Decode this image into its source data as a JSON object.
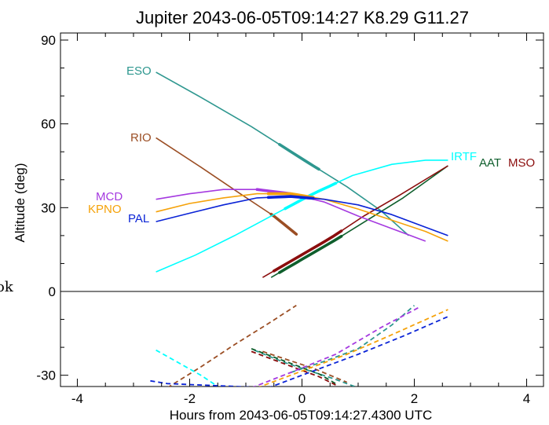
{
  "chart_data": {
    "type": "line",
    "title": "Jupiter 2043-06-05T09:14:27  K8.29  G11.27",
    "xlabel": "Hours from 2043-06-05T09:14:27.4300 UTC",
    "ylabel": "Altitude (deg)",
    "xlim": [
      -4.3,
      4.3
    ],
    "ylim": [
      -35,
      95
    ],
    "x_ticks": [
      "-4",
      "-2",
      "0",
      "2",
      "4"
    ],
    "y_ticks": [
      "90",
      "60",
      "30",
      "0",
      "-30"
    ],
    "stray_text": "ok",
    "series": [
      {
        "name": "ESO",
        "color": "#2e978f",
        "x": [
          -2.6,
          -1.8,
          -0.9,
          0.0,
          0.8,
          1.4,
          1.9
        ],
        "y": [
          78.5,
          69.5,
          59.0,
          47.5,
          37.5,
          29.0,
          20.0
        ],
        "thick_x": [
          -0.4,
          0.3
        ],
        "shadow_x": [
          -0.85,
          -0.55,
          -0.3,
          0.0,
          0.3,
          0.6,
          1.0
        ],
        "shadow_y": [
          -21.0,
          -23.5,
          -25.5,
          -27.5,
          -29.5,
          -31.5,
          -34.5
        ],
        "dashed_x": [
          -0.2,
          0.4,
          1.0,
          1.6,
          2.0
        ],
        "dashed_y": [
          -29.0,
          -25.0,
          -20.5,
          -12.0,
          -5.0
        ]
      },
      {
        "name": "RIO",
        "color": "#9b4e24",
        "x": [
          -2.6,
          -1.8,
          -1.1,
          -0.5,
          -0.1
        ],
        "y": [
          55.0,
          44.5,
          35.0,
          27.0,
          20.5
        ],
        "thick_x": [
          -0.55,
          -0.1
        ],
        "dashed_x": [
          -2.4,
          -1.8,
          -1.2,
          -0.6,
          -0.1
        ],
        "dashed_y": [
          -34.5,
          -27.0,
          -19.0,
          -11.5,
          -5.0
        ],
        "shadow_x": [
          -0.7,
          -0.4,
          -0.1,
          0.2,
          0.5,
          0.8
        ],
        "shadow_y": [
          -21.5,
          -23.5,
          -25.5,
          -27.5,
          -30.0,
          -32.5
        ]
      },
      {
        "name": "IRTF",
        "color": "#00ffff",
        "x": [
          -2.6,
          -1.9,
          -1.2,
          -0.5,
          0.2,
          0.9,
          1.6,
          2.2,
          2.6
        ],
        "y": [
          7.0,
          13.0,
          20.0,
          27.5,
          35.0,
          41.5,
          45.5,
          47.0,
          47.0
        ],
        "thick_x": [
          -0.3,
          0.6
        ],
        "dashed_x": [
          -2.6,
          -2.2,
          -1.8,
          -1.5
        ],
        "dashed_y": [
          -21.0,
          -25.5,
          -30.0,
          -34.0
        ]
      },
      {
        "name": "AAT",
        "color": "#0e5e2c",
        "x": [
          -0.55,
          0.0,
          0.6,
          1.2,
          1.8,
          2.6
        ],
        "y": [
          5.0,
          11.5,
          18.5,
          26.0,
          33.5,
          45.0
        ],
        "thick_x": [
          -0.4,
          0.7
        ],
        "dashed_x": [
          -0.9,
          -0.5,
          -0.1,
          0.3,
          0.6
        ],
        "dashed_y": [
          -20.5,
          -23.5,
          -26.5,
          -29.5,
          -33.0
        ]
      },
      {
        "name": "MSO",
        "color": "#8b0d0d",
        "x": [
          -0.7,
          -0.1,
          0.5,
          1.1,
          1.7,
          2.6
        ],
        "y": [
          5.0,
          12.0,
          19.0,
          27.0,
          34.0,
          45.0
        ],
        "thick_x": [
          -0.5,
          0.7
        ],
        "dashed_x": [
          -0.9,
          -0.5,
          -0.1,
          0.3,
          0.6
        ],
        "dashed_y": [
          -21.5,
          -24.5,
          -27.5,
          -30.5,
          -33.5
        ]
      },
      {
        "name": "MCD",
        "color": "#a53ae0",
        "x": [
          -2.6,
          -2.0,
          -1.4,
          -0.8,
          -0.2,
          0.4,
          1.0,
          1.6,
          2.2
        ],
        "y": [
          33.0,
          35.0,
          36.5,
          36.5,
          35.0,
          32.0,
          27.0,
          22.5,
          18.0
        ],
        "thick_x": [
          -0.8,
          0.0
        ],
        "dashed_x": [
          -0.9,
          -0.2,
          0.6,
          1.4,
          2.1
        ],
        "dashed_y": [
          -34.5,
          -29.0,
          -22.5,
          -13.0,
          -5.5
        ]
      },
      {
        "name": "KPNO",
        "color": "#f5a20a",
        "x": [
          -2.6,
          -2.0,
          -1.4,
          -0.8,
          -0.2,
          0.4,
          1.0,
          1.6,
          2.2,
          2.6
        ],
        "y": [
          28.5,
          31.5,
          33.5,
          35.0,
          35.0,
          33.0,
          29.5,
          25.5,
          21.5,
          18.0
        ],
        "thick_x": [
          -0.6,
          0.2
        ],
        "dashed_x": [
          -0.8,
          0.0,
          0.8,
          1.6,
          2.6
        ],
        "dashed_y": [
          -34.5,
          -28.5,
          -22.5,
          -15.5,
          -6.5
        ]
      },
      {
        "name": "PAL",
        "color": "#0a23d6",
        "x": [
          -2.6,
          -2.0,
          -1.4,
          -0.8,
          -0.2,
          0.4,
          1.0,
          1.6,
          2.2,
          2.6
        ],
        "y": [
          25.0,
          28.0,
          31.0,
          33.5,
          34.0,
          33.0,
          31.0,
          27.5,
          23.0,
          20.0
        ],
        "thick_x": [
          -0.6,
          0.2
        ],
        "dashed_x": [
          -2.7,
          -2.4,
          -0.6,
          0.2,
          1.0,
          1.8,
          2.6
        ],
        "dashed_y": [
          -32.0,
          -33.0,
          -34.5,
          -28.5,
          -22.5,
          -16.0,
          -9.0
        ]
      }
    ]
  }
}
